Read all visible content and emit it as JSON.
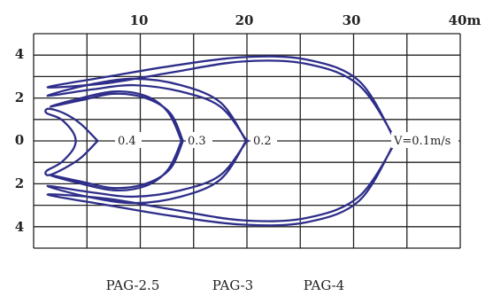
{
  "chart_data": {
    "type": "line",
    "x_axis": {
      "ticks": [
        "10",
        "20",
        "30",
        "40m"
      ],
      "range": [
        0,
        40
      ],
      "unit": "m",
      "position": "top"
    },
    "y_axis": {
      "ticks": [
        "4",
        "2",
        "0",
        "2",
        "4"
      ],
      "range": [
        -5,
        5
      ]
    },
    "grid": true,
    "series": [
      {
        "name": "0.4",
        "color": "#2e2e8a",
        "points": [
          [
            6,
            0
          ],
          [
            4.4,
            0.8
          ],
          [
            2.8,
            1.3
          ],
          [
            1.4,
            1.5
          ],
          [
            1.2,
            1.3
          ],
          [
            2.6,
            1.0
          ],
          [
            3.8,
            0.3
          ],
          [
            3.8,
            -0.3
          ],
          [
            2.6,
            -1.0
          ],
          [
            1.2,
            -1.4
          ],
          [
            1.4,
            -1.6
          ],
          [
            2.8,
            -1.3
          ],
          [
            4.4,
            -0.8
          ],
          [
            6,
            0
          ]
        ]
      },
      {
        "name": "0.3",
        "color": "#2e2e8a",
        "points": [
          [
            14,
            0
          ],
          [
            12.8,
            1.3
          ],
          [
            10.5,
            2.0
          ],
          [
            7.5,
            2.2
          ],
          [
            4.5,
            1.9
          ],
          [
            1.6,
            1.6
          ],
          [
            3.7,
            1.9
          ],
          [
            7.5,
            2.3
          ],
          [
            10.5,
            2.1
          ],
          [
            12.5,
            1.4
          ],
          [
            13.7,
            0.2
          ],
          [
            13.7,
            -0.2
          ],
          [
            12.5,
            -1.4
          ],
          [
            10.5,
            -2.1
          ],
          [
            7.5,
            -2.3
          ],
          [
            3.7,
            -1.9
          ],
          [
            1.6,
            -1.6
          ],
          [
            4.5,
            -1.9
          ],
          [
            7.5,
            -2.2
          ],
          [
            10.5,
            -2.0
          ],
          [
            12.8,
            -1.3
          ],
          [
            14,
            0
          ]
        ]
      },
      {
        "name": "0.2",
        "color": "#2e2e8a",
        "points": [
          [
            20,
            0
          ],
          [
            17.5,
            1.6
          ],
          [
            13.8,
            2.3
          ],
          [
            9.4,
            2.6
          ],
          [
            5.5,
            2.4
          ],
          [
            1.3,
            2.1
          ],
          [
            5.0,
            2.6
          ],
          [
            9.4,
            2.9
          ],
          [
            13.8,
            2.6
          ],
          [
            17.5,
            1.8
          ],
          [
            19.8,
            0.1
          ],
          [
            19.8,
            -0.1
          ],
          [
            17.5,
            -1.8
          ],
          [
            13.8,
            -2.6
          ],
          [
            9.4,
            -2.9
          ],
          [
            5.0,
            -2.6
          ],
          [
            1.3,
            -2.1
          ],
          [
            5.5,
            -2.4
          ],
          [
            9.4,
            -2.6
          ],
          [
            13.8,
            -2.3
          ],
          [
            17.5,
            -1.6
          ],
          [
            20,
            0
          ]
        ]
      },
      {
        "name": "V=0.1m/s",
        "color": "#2e2e8a",
        "points": [
          [
            34,
            0
          ],
          [
            30.5,
            2.6
          ],
          [
            25.5,
            3.6
          ],
          [
            19.5,
            3.7
          ],
          [
            13.0,
            3.2
          ],
          [
            7.0,
            2.7
          ],
          [
            1.3,
            2.5
          ],
          [
            7.0,
            3.0
          ],
          [
            13.0,
            3.5
          ],
          [
            19.5,
            3.9
          ],
          [
            25.5,
            3.8
          ],
          [
            30.5,
            2.8
          ],
          [
            33.8,
            0.1
          ],
          [
            33.8,
            -0.1
          ],
          [
            30.5,
            -2.8
          ],
          [
            25.5,
            -3.8
          ],
          [
            19.5,
            -3.9
          ],
          [
            13.0,
            -3.5
          ],
          [
            7.0,
            -3.0
          ],
          [
            1.3,
            -2.5
          ],
          [
            7.0,
            -2.7
          ],
          [
            13.0,
            -3.2
          ],
          [
            19.5,
            -3.7
          ],
          [
            25.5,
            -3.6
          ],
          [
            30.5,
            -2.6
          ],
          [
            34,
            0
          ]
        ]
      }
    ],
    "annotations": [
      "0.4",
      "0.3",
      "0.2",
      "V=0.1m/s"
    ],
    "captions": [
      "PAG-2.5",
      "PAG-3",
      "PAG-4"
    ]
  }
}
